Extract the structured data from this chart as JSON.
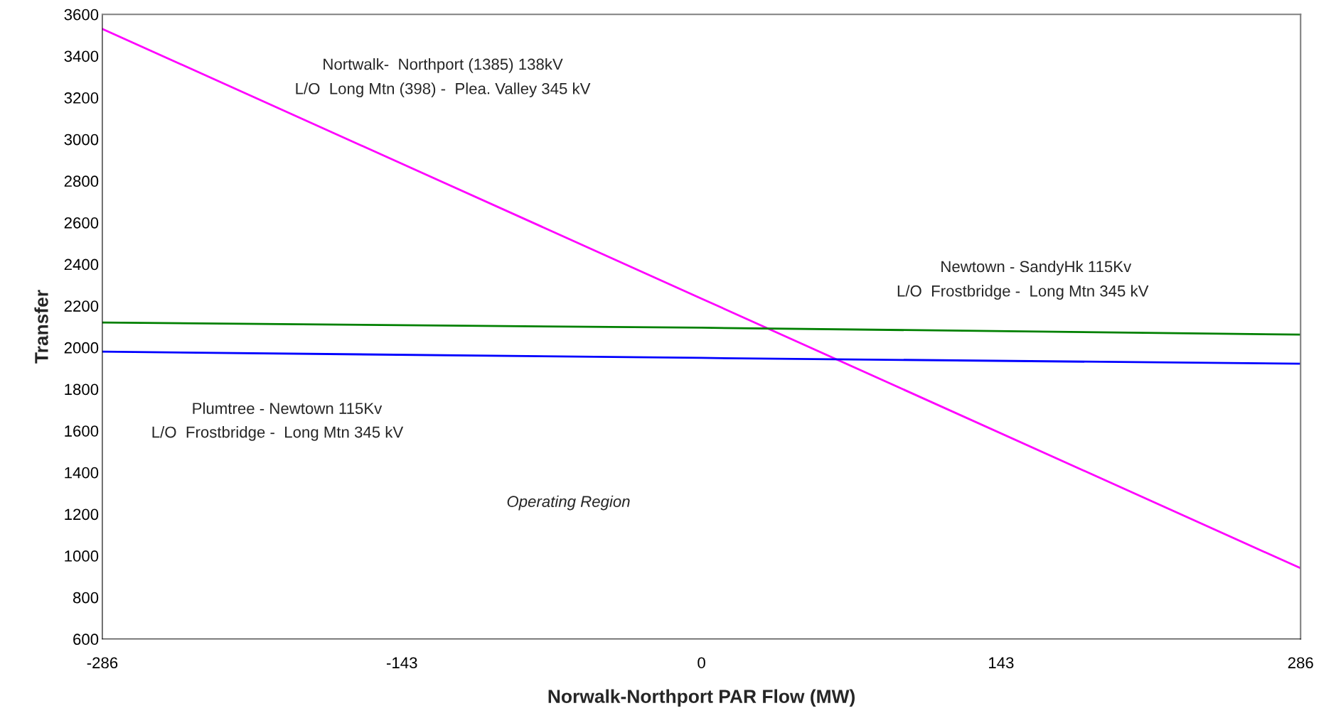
{
  "chart_data": {
    "type": "line",
    "xlabel": "Norwalk-Northport PAR Flow (MW)",
    "ylabel": "Transfer",
    "x": [
      -286,
      0,
      286
    ],
    "series": [
      {
        "color": "#ff00ff",
        "values": [
          3530,
          2235,
          940
        ]
      },
      {
        "color": "#008000",
        "values": [
          2120,
          2095,
          2062
        ]
      },
      {
        "color": "#0000ff",
        "values": [
          1980,
          1950,
          1922
        ]
      }
    ],
    "xlim": [
      -286,
      286
    ],
    "xticks": [
      -286,
      -143,
      0,
      143,
      286
    ],
    "ylim": [
      600,
      3600
    ],
    "yticks": [
      600,
      800,
      1000,
      1200,
      1400,
      1600,
      1800,
      2000,
      2200,
      2400,
      2600,
      2800,
      3000,
      3200,
      3400,
      3600
    ],
    "grid": false,
    "legend": false,
    "marker": "none",
    "line_style": "solid",
    "annotations": [
      "Nortwalk-  Northport (1385) 138kV",
      "L/O  Long Mtn (398) -  Plea. Valley 345 kV",
      "Newtown - SandyHk 115Kv",
      "L/O  Frostbridge -  Long Mtn 345 kV",
      "Plumtree - Newtown 115Kv",
      "L/O  Frostbridge -  Long Mtn 345 kV",
      "Operating Region"
    ]
  }
}
